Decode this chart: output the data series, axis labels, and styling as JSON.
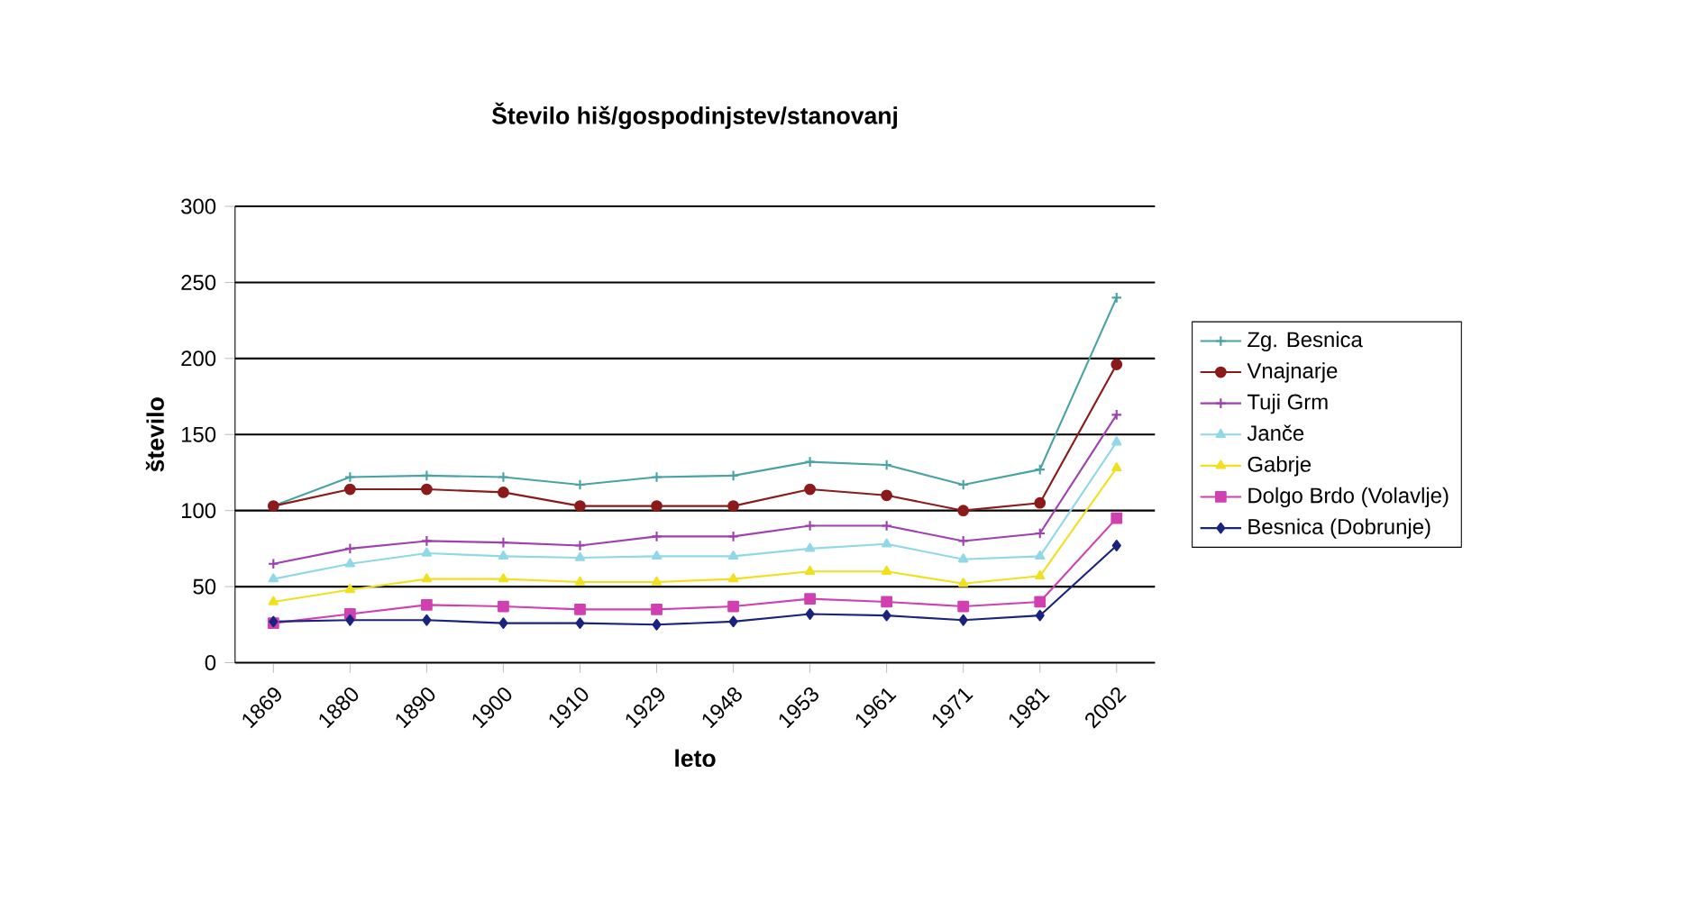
{
  "chart_data": {
    "type": "line",
    "title": "Število hiš/gospodinjstev/stanovanj",
    "xlabel": "leto",
    "ylabel": "število",
    "categories": [
      "1869",
      "1880",
      "1890",
      "1900",
      "1910",
      "1929",
      "1948",
      "1953",
      "1961",
      "1971",
      "1981",
      "2002"
    ],
    "ylim": [
      0,
      300
    ],
    "yticks": [
      0,
      50,
      100,
      150,
      200,
      250,
      300
    ],
    "grid": "y",
    "legend": "right",
    "series": [
      {
        "name": "Zg. Besnica",
        "color": "#4aa3a3",
        "marker": "cross",
        "values": [
          103,
          122,
          123,
          122,
          117,
          122,
          123,
          132,
          130,
          117,
          127,
          240
        ]
      },
      {
        "name": "Vnajnarje",
        "color": "#8b1a1a",
        "marker": "circle",
        "values": [
          103,
          114,
          114,
          112,
          103,
          103,
          103,
          114,
          110,
          100,
          105,
          196
        ]
      },
      {
        "name": "Tuji Grm",
        "color": "#a040b0",
        "marker": "cross",
        "values": [
          65,
          75,
          80,
          79,
          77,
          83,
          83,
          90,
          90,
          80,
          85,
          163
        ]
      },
      {
        "name": "Janče",
        "color": "#8fd8e8",
        "marker": "triangle",
        "values": [
          55,
          65,
          72,
          70,
          69,
          70,
          70,
          75,
          78,
          68,
          70,
          145
        ]
      },
      {
        "name": "Gabrje",
        "color": "#f0e020",
        "marker": "triangle",
        "values": [
          40,
          48,
          55,
          55,
          53,
          53,
          55,
          60,
          60,
          52,
          57,
          128
        ]
      },
      {
        "name": "Dolgo Brdo (Volavlje)",
        "color": "#d040b0",
        "marker": "square",
        "values": [
          26,
          32,
          38,
          37,
          35,
          35,
          37,
          42,
          40,
          37,
          40,
          95
        ]
      },
      {
        "name": "Besnica (Dobrunje)",
        "color": "#1a237e",
        "marker": "diamond",
        "values": [
          27,
          28,
          28,
          26,
          26,
          25,
          27,
          32,
          31,
          28,
          31,
          77
        ]
      }
    ]
  }
}
